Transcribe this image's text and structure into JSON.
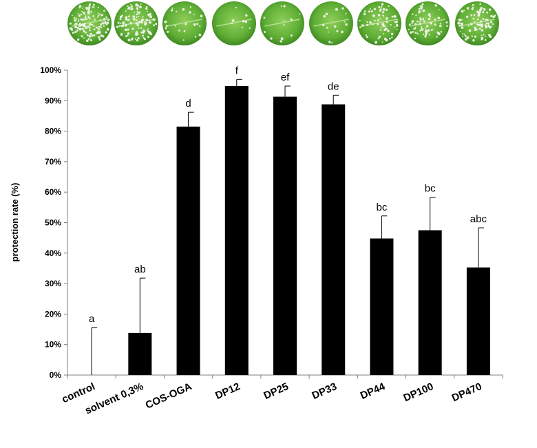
{
  "chart_data": {
    "type": "bar",
    "ylabel": "protection rate (%)",
    "xlabel": "",
    "ylim": [
      0,
      100
    ],
    "y_ticks": [
      "0%",
      "10%",
      "20%",
      "30%",
      "40%",
      "50%",
      "60%",
      "70%",
      "80%",
      "90%",
      "100%"
    ],
    "categories": [
      "control",
      "solvent 0,3%",
      "COS-OGA",
      "DP12",
      "DP25",
      "DP33",
      "DP44",
      "DP100",
      "DP470"
    ],
    "values": [
      0,
      13.8,
      81.5,
      94.8,
      91.3,
      88.8,
      44.8,
      47.5,
      35.3
    ],
    "error_upper": [
      15.6,
      18.0,
      4.7,
      2.2,
      3.5,
      3.0,
      7.4,
      10.8,
      13.0
    ],
    "significance_letters": [
      "a",
      "ab",
      "d",
      "f",
      "ef",
      "de",
      "bc",
      "bc",
      "abc"
    ],
    "grid": false,
    "bar_color": "#000000",
    "leaf_images": [
      "leaf-disc-control",
      "leaf-disc-solvent",
      "leaf-disc-cos-oga",
      "leaf-disc-dp12",
      "leaf-disc-dp25",
      "leaf-disc-dp33",
      "leaf-disc-dp44",
      "leaf-disc-dp100",
      "leaf-disc-dp470"
    ],
    "leaf_infection": [
      0.9,
      0.8,
      0.15,
      0.05,
      0.08,
      0.1,
      0.5,
      0.45,
      0.6
    ]
  }
}
